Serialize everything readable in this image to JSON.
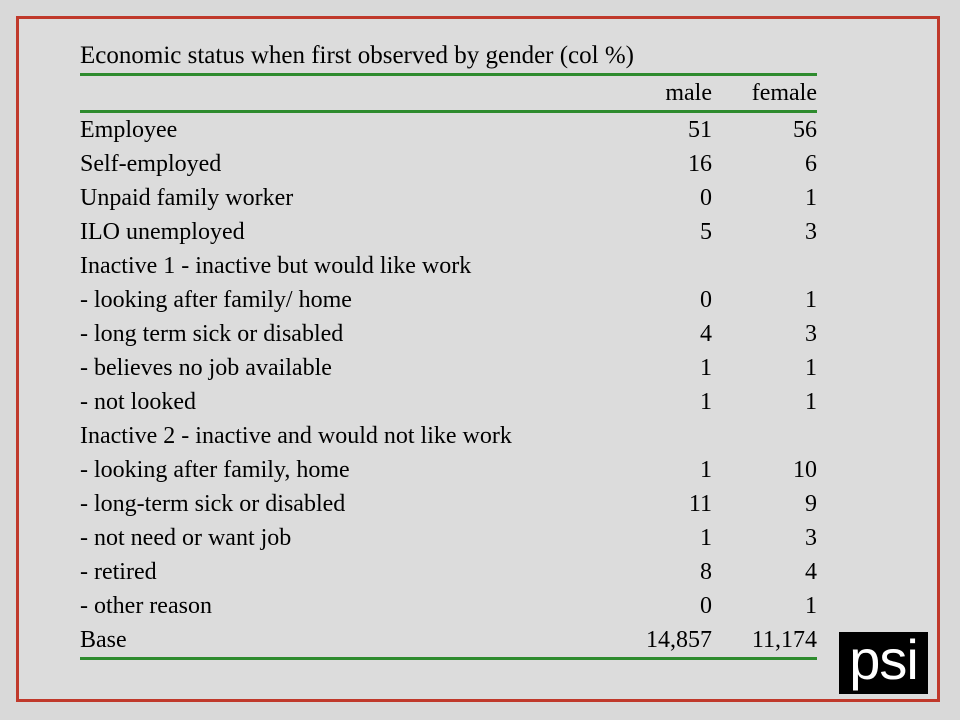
{
  "table": {
    "title": "Economic status when first observed by gender (col %)",
    "header": {
      "label": "",
      "male": "male",
      "female": "female"
    },
    "rows": [
      {
        "label": "Employee",
        "male": "51",
        "female": "56"
      },
      {
        "label": "Self-employed",
        "male": "16",
        "female": "6"
      },
      {
        "label": "Unpaid family worker",
        "male": "0",
        "female": "1"
      },
      {
        "label": "ILO unemployed",
        "male": "5",
        "female": "3"
      },
      {
        "label": "Inactive 1 - inactive but would like work",
        "male": "",
        "female": ""
      },
      {
        "label": "- looking after family/ home",
        "male": "0",
        "female": "1"
      },
      {
        "label": "- long term sick or disabled",
        "male": "4",
        "female": "3"
      },
      {
        "label": "- believes no job available",
        "male": "1",
        "female": "1"
      },
      {
        "label": "- not looked",
        "male": "1",
        "female": "1"
      },
      {
        "label": "Inactive 2 - inactive and would not like work",
        "male": "",
        "female": ""
      },
      {
        "label": "- looking after family, home",
        "male": "1",
        "female": "10"
      },
      {
        "label": "- long-term sick or disabled",
        "male": "11",
        "female": "9"
      },
      {
        "label": "- not need or want job",
        "male": "1",
        "female": "3"
      },
      {
        "label": "- retired",
        "male": "8",
        "female": "4"
      },
      {
        "label": "- other reason",
        "male": "0",
        "female": "1"
      },
      {
        "label": "Base",
        "male": "14,857",
        "female": "11,174"
      }
    ]
  },
  "logo": {
    "text": "psi"
  },
  "colors": {
    "frame_border": "#c0392b",
    "rule": "#2e8b2e",
    "background": "#d9d9d9",
    "logo_bg": "#000000",
    "logo_fg": "#ffffff"
  }
}
